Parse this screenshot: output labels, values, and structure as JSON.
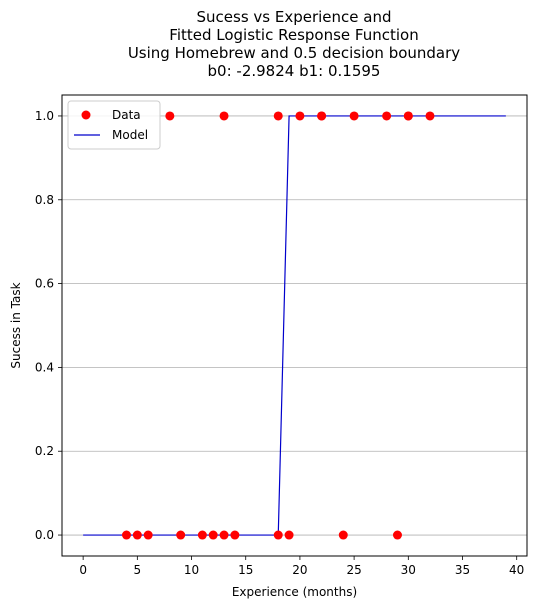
{
  "chart_data": {
    "type": "scatter",
    "title": [
      "Sucess vs Experience and",
      "Fitted Logistic Response Function",
      "Using Homebrew and 0.5 decision boundary",
      "b0: -2.9824 b1: 0.1595"
    ],
    "xlabel": "Experience (months)",
    "ylabel": "Sucess in Task",
    "xlim": [
      -1.95,
      40.95
    ],
    "ylim": [
      -0.05,
      1.05
    ],
    "xticks": [
      0,
      5,
      10,
      15,
      20,
      25,
      30,
      35,
      40
    ],
    "yticks": [
      0.0,
      0.2,
      0.4,
      0.6,
      0.8,
      1.0
    ],
    "xtick_labels": [
      "0",
      "5",
      "10",
      "15",
      "20",
      "25",
      "30",
      "35",
      "40"
    ],
    "ytick_labels": [
      "0.0",
      "0.2",
      "0.4",
      "0.6",
      "0.8",
      "1.0"
    ],
    "grid": "y-axis only",
    "legend_position": "top-left",
    "series": [
      {
        "name": "Data",
        "style": "markers",
        "color": "#ff0000",
        "x": [
          4,
          5,
          6,
          8,
          9,
          11,
          12,
          13,
          13,
          14,
          18,
          18,
          19,
          20,
          22,
          22,
          24,
          25,
          28,
          29,
          30,
          30,
          32
        ],
        "y": [
          0,
          0,
          0,
          1,
          0,
          0,
          0,
          0,
          1,
          0,
          0,
          1,
          0,
          1,
          1,
          1,
          0,
          1,
          1,
          0,
          1,
          1,
          1
        ]
      },
      {
        "name": "Model",
        "style": "line",
        "color": "#0000cc",
        "x": [
          0,
          18,
          19,
          39
        ],
        "y": [
          0,
          0,
          1,
          1
        ]
      }
    ]
  }
}
